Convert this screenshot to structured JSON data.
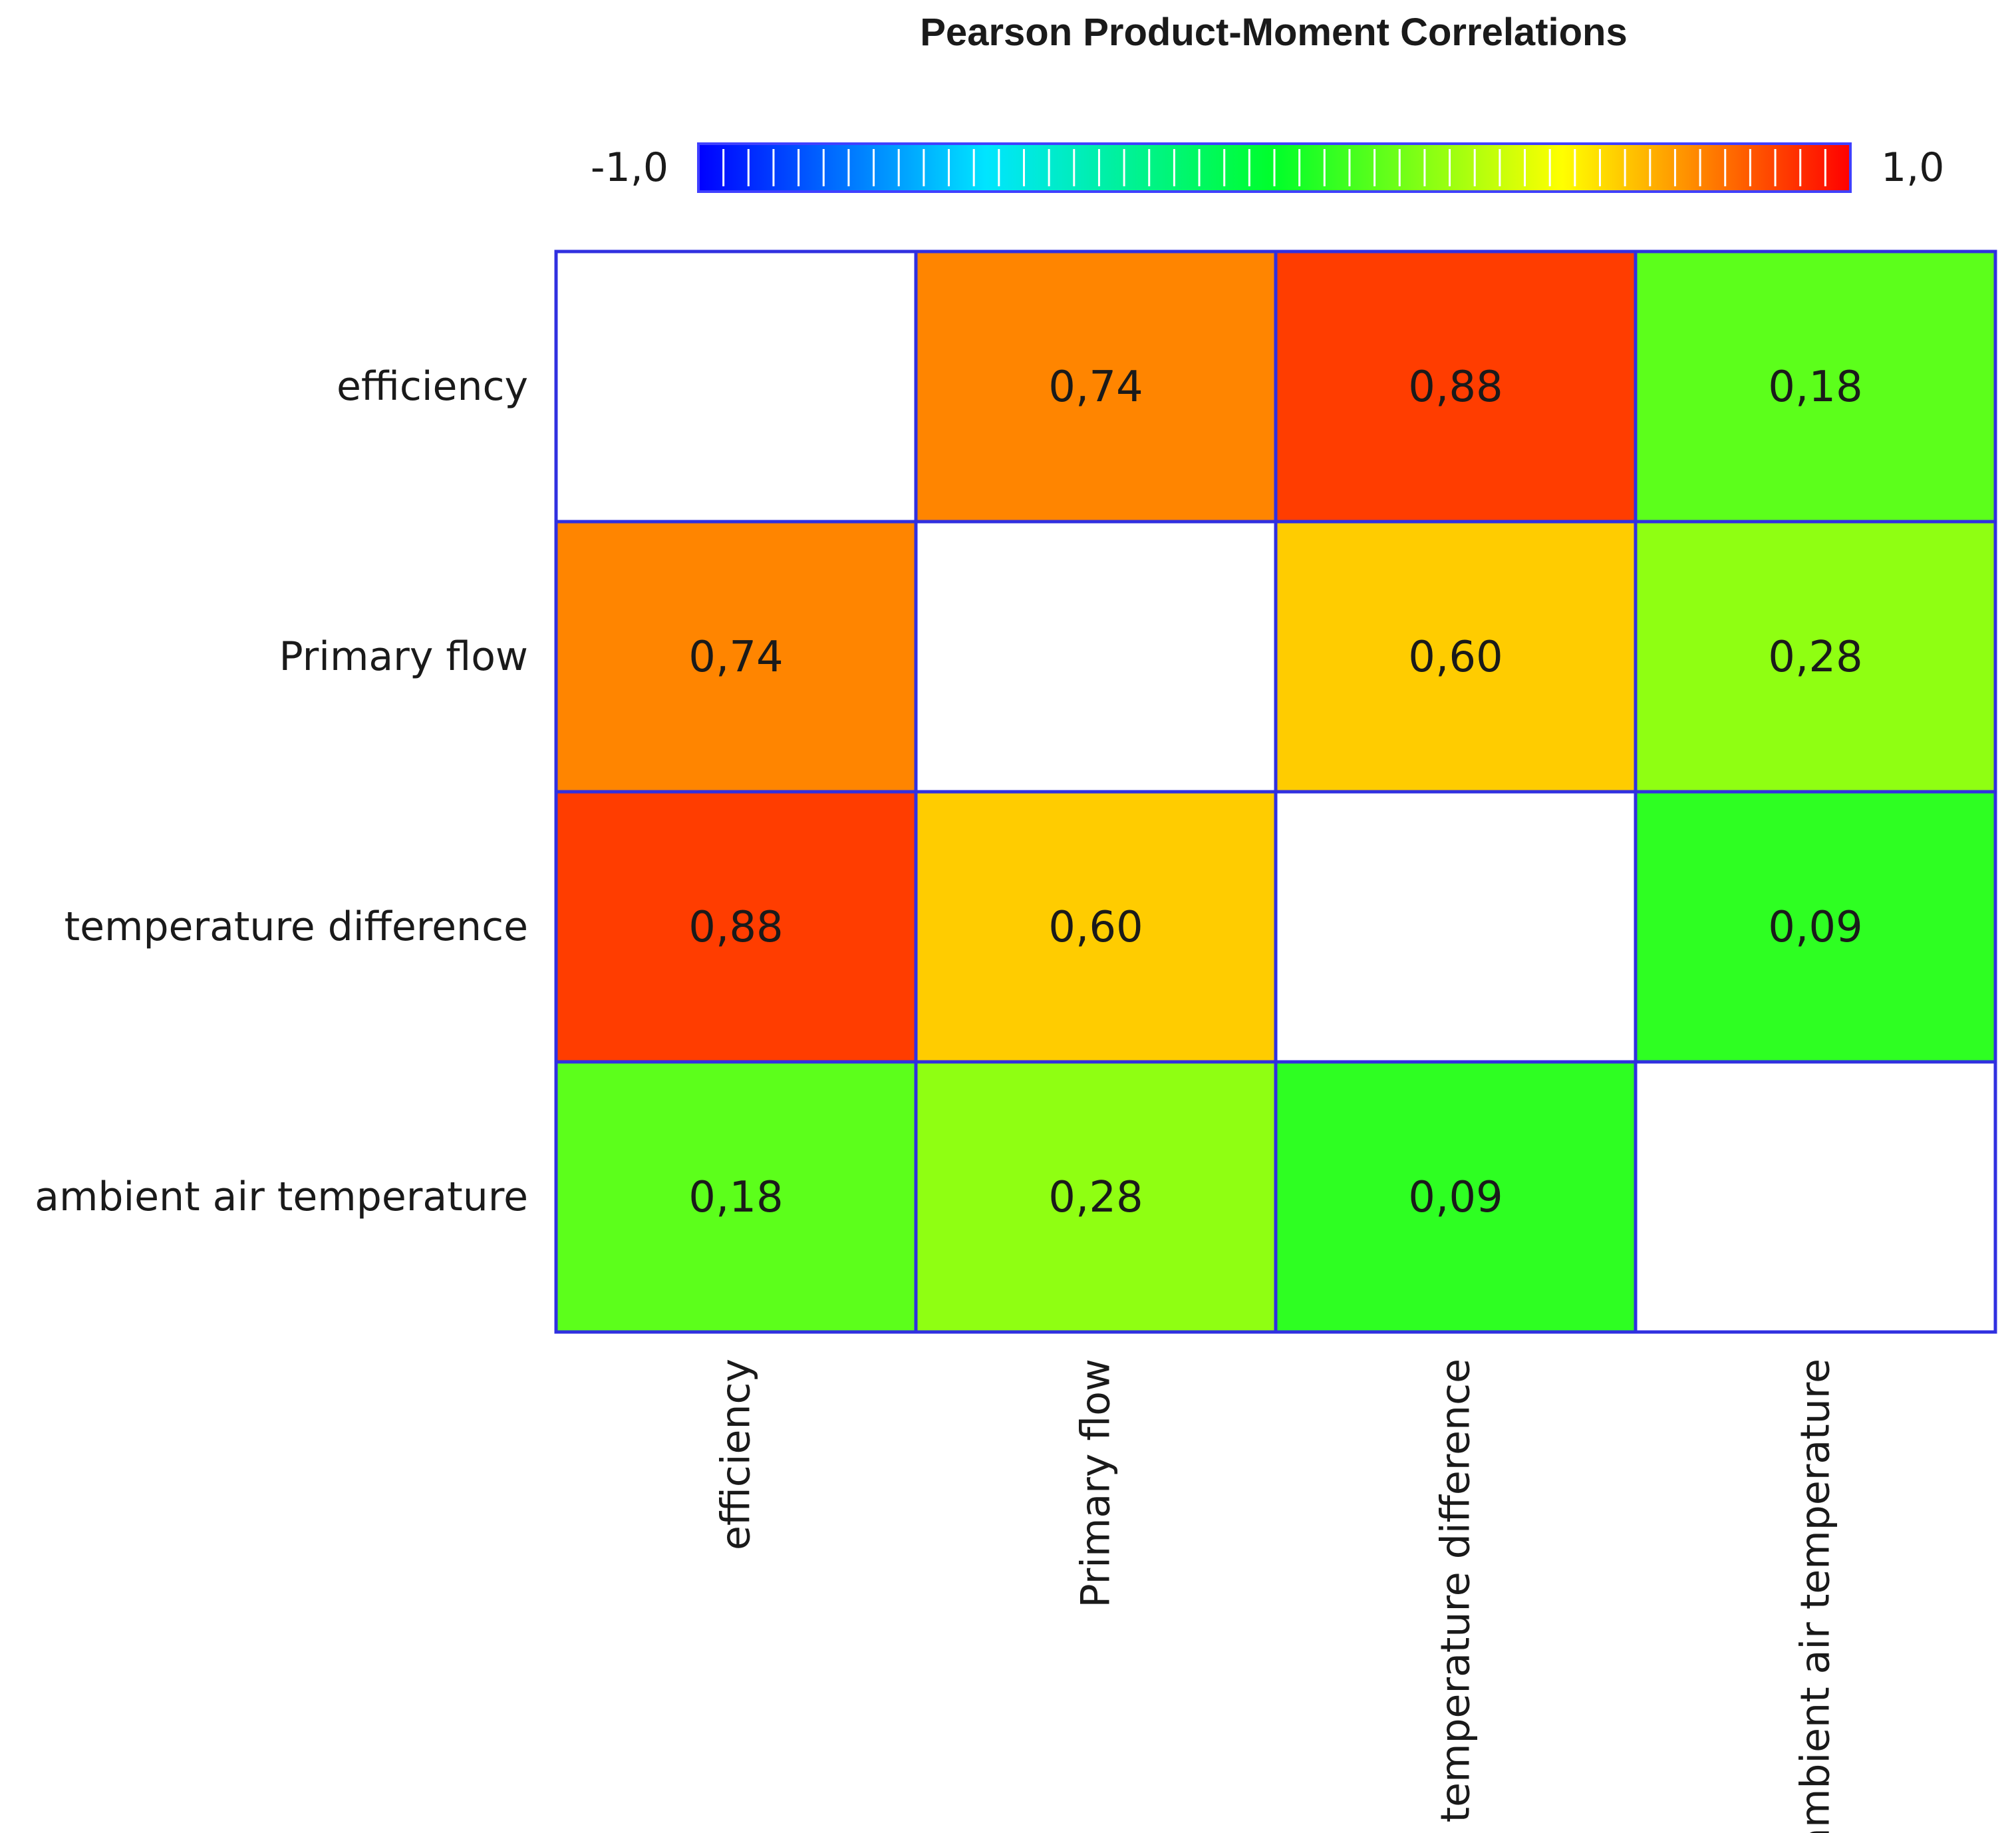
{
  "chart_data": {
    "type": "heatmap",
    "title": "Pearson Product-Moment Correlations",
    "row_labels": [
      "efficiency",
      "Primary flow",
      "temperature difference",
      "ambient air temperature"
    ],
    "col_labels": [
      "efficiency",
      "Primary flow",
      "temperature difference",
      "ambient air temperature"
    ],
    "values": [
      [
        null,
        0.74,
        0.88,
        0.18
      ],
      [
        0.74,
        null,
        0.6,
        0.28
      ],
      [
        0.88,
        0.6,
        null,
        0.09
      ],
      [
        0.18,
        0.28,
        0.09,
        null
      ]
    ],
    "display_values": [
      [
        "",
        "0,74",
        "0,88",
        "0,18"
      ],
      [
        "0,74",
        "",
        "0,60",
        "0,28"
      ],
      [
        "0,88",
        "0,60",
        "",
        "0,09"
      ],
      [
        "0,18",
        "0,28",
        "0,09",
        ""
      ]
    ],
    "colorscale": {
      "min": -1.0,
      "max": 1.0,
      "min_label": "-1,0",
      "max_label": "1,0",
      "colors": [
        "#0000ff",
        "#00e5ff",
        "#00ff2a",
        "#ffff00",
        "#ff0000"
      ]
    },
    "grid_line_color": "#3030e0",
    "empty_cell_color": "#ffffff"
  }
}
